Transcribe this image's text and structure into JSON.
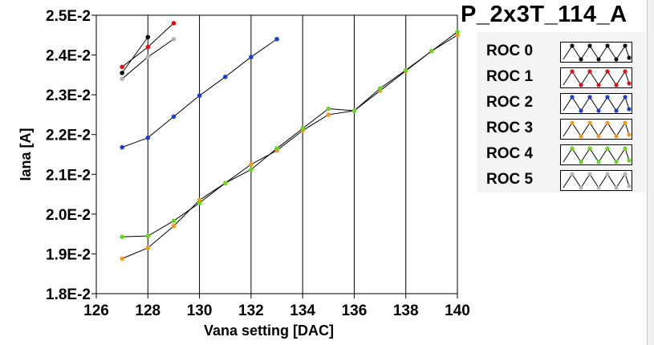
{
  "chart_data": {
    "type": "line",
    "title": "P_2x3T_114_A",
    "xlabel": "Vana setting [DAC]",
    "ylabel": "Iana [A]",
    "xlim": [
      126,
      140
    ],
    "ylim": [
      0.018,
      0.025
    ],
    "x_ticks": [
      126,
      128,
      130,
      132,
      134,
      136,
      138,
      140
    ],
    "x_tick_labels": [
      "126",
      "128",
      "130",
      "132",
      "134",
      "136",
      "138",
      "140"
    ],
    "y_ticks": [
      0.018,
      0.019,
      0.02,
      0.021,
      0.022,
      0.023,
      0.024,
      0.025
    ],
    "y_tick_labels": [
      "1.8E-2",
      "1.9E-2",
      "2.0E-2",
      "2.1E-2",
      "2.2E-2",
      "2.3E-2",
      "2.4E-2",
      "2.5E-2"
    ],
    "grid": "vertical",
    "legend_position": "right",
    "series": [
      {
        "name": "ROC 0",
        "color": "#111111",
        "x": [
          127,
          128
        ],
        "y": [
          0.02355,
          0.02445
        ]
      },
      {
        "name": "ROC 1",
        "color": "#e01010",
        "x": [
          127,
          128,
          129
        ],
        "y": [
          0.0237,
          0.0242,
          0.0248
        ]
      },
      {
        "name": "ROC 2",
        "color": "#1a3fcf",
        "x": [
          127,
          128,
          129,
          130,
          131,
          132,
          133
        ],
        "y": [
          0.02168,
          0.02192,
          0.02245,
          0.02298,
          0.02345,
          0.02395,
          0.0244
        ]
      },
      {
        "name": "ROC 3",
        "color": "#f59a1c",
        "x": [
          127,
          128,
          129,
          130,
          131,
          132,
          133,
          134,
          135,
          136,
          137,
          138,
          139,
          140
        ],
        "y": [
          0.01888,
          0.01915,
          0.0197,
          0.02035,
          0.02078,
          0.02125,
          0.0216,
          0.0221,
          0.0225,
          0.0226,
          0.0231,
          0.0236,
          0.0241,
          0.0245
        ]
      },
      {
        "name": "ROC 4",
        "color": "#6ad61c",
        "x": [
          127,
          128,
          129,
          130,
          131,
          132,
          133,
          134,
          135,
          136,
          137,
          138,
          139,
          140
        ],
        "y": [
          0.01943,
          0.01945,
          0.01983,
          0.02028,
          0.02078,
          0.02112,
          0.02165,
          0.02215,
          0.02265,
          0.0226,
          0.02316,
          0.02362,
          0.0241,
          0.02458
        ]
      },
      {
        "name": "ROC 5",
        "color": "#b4b4b4",
        "x": [
          127,
          128,
          129
        ],
        "y": [
          0.0234,
          0.02395,
          0.0244
        ]
      }
    ]
  }
}
